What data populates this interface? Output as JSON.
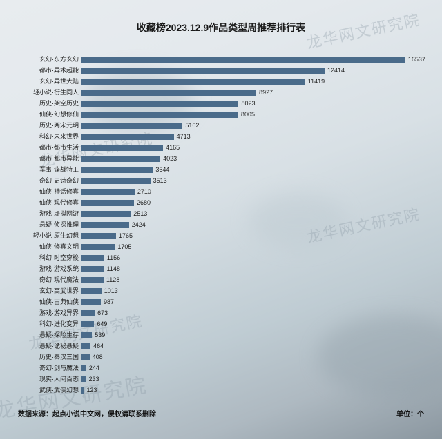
{
  "title": "收藏榜2023.12.9作品类型周推荐排行表",
  "watermark": "龙华网文研究院",
  "footer_left": "数据来源：起点小说中文网，侵权请联系删除",
  "footer_right": "单位：个",
  "chart": {
    "type": "bar",
    "orientation": "horizontal",
    "bar_color": "#4a6b8a",
    "value_fontsize": 9,
    "category_fontsize": 9,
    "title_fontsize": 14,
    "background_gradient": [
      "#e8ecef",
      "#d8e0e5",
      "#aeb9c1"
    ],
    "xlim": [
      0,
      17000
    ],
    "items": [
      {
        "category": "玄幻·东方玄幻",
        "value": 16537
      },
      {
        "category": "都市·异术超能",
        "value": 12414
      },
      {
        "category": "玄幻·异世大陆",
        "value": 11419
      },
      {
        "category": "轻小说·衍生同人",
        "value": 8927
      },
      {
        "category": "历史·架空历史",
        "value": 8023
      },
      {
        "category": "仙侠·幻想修仙",
        "value": 8005
      },
      {
        "category": "历史·两宋元明",
        "value": 5162
      },
      {
        "category": "科幻·未来世界",
        "value": 4713
      },
      {
        "category": "都市·都市生活",
        "value": 4165
      },
      {
        "category": "都市·都市异能",
        "value": 4023
      },
      {
        "category": "军事·谍战特工",
        "value": 3644
      },
      {
        "category": "奇幻·史诗奇幻",
        "value": 3513
      },
      {
        "category": "仙侠·神话修真",
        "value": 2710
      },
      {
        "category": "仙侠·现代修真",
        "value": 2680
      },
      {
        "category": "游戏·虚拟网游",
        "value": 2513
      },
      {
        "category": "悬疑·侦探推理",
        "value": 2424
      },
      {
        "category": "轻小说·原生幻想",
        "value": 1765
      },
      {
        "category": "仙侠·修真文明",
        "value": 1705
      },
      {
        "category": "科幻·时空穿梭",
        "value": 1156
      },
      {
        "category": "游戏·游戏系统",
        "value": 1148
      },
      {
        "category": "奇幻·现代魔法",
        "value": 1128
      },
      {
        "category": "玄幻·高武世界",
        "value": 1013
      },
      {
        "category": "仙侠·古典仙侠",
        "value": 987
      },
      {
        "category": "游戏·游戏异界",
        "value": 673
      },
      {
        "category": "科幻·进化变异",
        "value": 649
      },
      {
        "category": "悬疑·探险生存",
        "value": 539
      },
      {
        "category": "悬疑·诡秘悬疑",
        "value": 464
      },
      {
        "category": "历史·秦汉三国",
        "value": 408
      },
      {
        "category": "奇幻·剑与魔法",
        "value": 244
      },
      {
        "category": "现实·人间百态",
        "value": 233
      },
      {
        "category": "武侠·武侠幻想",
        "value": 123
      }
    ]
  }
}
